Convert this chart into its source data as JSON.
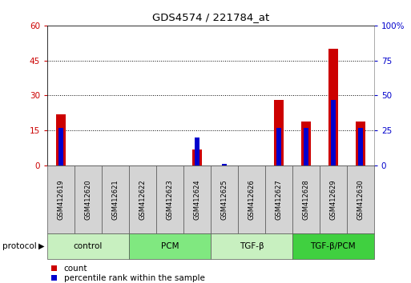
{
  "title": "GDS4574 / 221784_at",
  "samples": [
    "GSM412619",
    "GSM412620",
    "GSM412621",
    "GSM412622",
    "GSM412623",
    "GSM412624",
    "GSM412625",
    "GSM412626",
    "GSM412627",
    "GSM412628",
    "GSM412629",
    "GSM412630"
  ],
  "count": [
    22,
    0,
    0,
    0,
    0,
    7,
    0,
    0,
    28,
    19,
    50,
    19
  ],
  "percentile": [
    27,
    0,
    0,
    0,
    0,
    20,
    1,
    0,
    27,
    27,
    47,
    27
  ],
  "ylim_left": [
    0,
    60
  ],
  "ylim_right": [
    0,
    100
  ],
  "yticks_left": [
    0,
    15,
    30,
    45,
    60
  ],
  "yticks_right": [
    0,
    25,
    50,
    75,
    100
  ],
  "yticklabels_right": [
    "0",
    "25",
    "50",
    "75",
    "100%"
  ],
  "groups": [
    {
      "label": "control",
      "start": 0,
      "end": 3,
      "color": "#c8f0c0"
    },
    {
      "label": "PCM",
      "start": 3,
      "end": 6,
      "color": "#80e880"
    },
    {
      "label": "TGF-β",
      "start": 6,
      "end": 9,
      "color": "#c8f0c0"
    },
    {
      "label": "TGF-β/PCM",
      "start": 9,
      "end": 12,
      "color": "#40d040"
    }
  ],
  "bar_color_red": "#cc0000",
  "bar_color_blue": "#0000cc",
  "bg_color": "#ffffff",
  "left_label_color": "#cc0000",
  "right_label_color": "#0000cc",
  "protocol_label": "protocol",
  "legend_count": "count",
  "legend_pct": "percentile rank within the sample",
  "sample_box_color": "#d4d4d4"
}
